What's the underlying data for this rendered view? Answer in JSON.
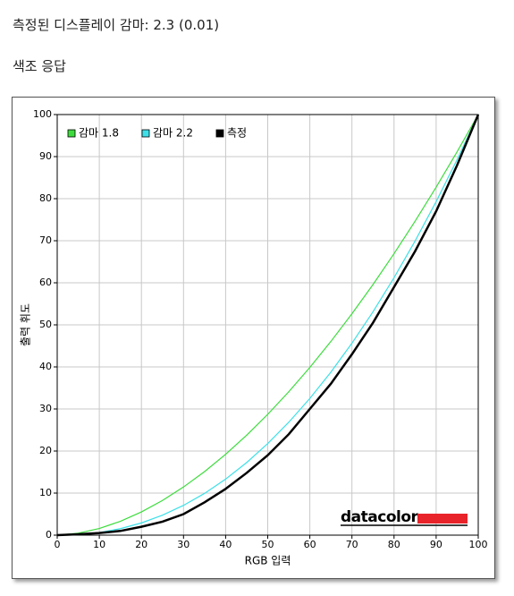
{
  "header": {
    "title": "측정된 디스플레이 감마: 2.3 (0.01)",
    "subtitle": "색조 응답"
  },
  "chart_data": {
    "type": "line",
    "xlabel": "RGB 입력",
    "ylabel": "출력 휘도",
    "logo": "datacolor",
    "x": [
      0,
      5,
      10,
      15,
      20,
      25,
      30,
      35,
      40,
      45,
      50,
      55,
      60,
      65,
      70,
      75,
      80,
      85,
      90,
      95,
      100
    ],
    "series": [
      {
        "name": "감마 1.8",
        "color": "#3ddc3d",
        "values": [
          0,
          0.46,
          1.58,
          3.29,
          5.52,
          8.25,
          11.45,
          15.11,
          19.22,
          23.76,
          28.72,
          34.09,
          39.87,
          46.05,
          52.63,
          59.58,
          66.92,
          74.64,
          82.72,
          91.18,
          100
        ]
      },
      {
        "name": "감마 2.2",
        "color": "#3de0e8",
        "values": [
          0,
          0.14,
          0.63,
          1.54,
          2.9,
          4.74,
          7.08,
          9.93,
          13.32,
          17.26,
          21.76,
          26.84,
          32.5,
          38.76,
          45.63,
          53.1,
          61.21,
          69.94,
          79.3,
          89.33,
          100
        ]
      },
      {
        "name": "측정",
        "color": "#000000",
        "values": [
          0,
          0.2,
          0.5,
          1,
          2,
          3.2,
          5,
          7.8,
          11,
          14.8,
          19,
          24,
          30,
          36,
          43,
          50.5,
          59,
          67.5,
          77,
          88,
          100
        ]
      }
    ],
    "xlim": [
      0,
      100
    ],
    "ylim": [
      0,
      100
    ],
    "xticks": [
      0,
      10,
      20,
      30,
      40,
      50,
      60,
      70,
      80,
      90,
      100
    ],
    "yticks": [
      0,
      10,
      20,
      30,
      40,
      50,
      60,
      70,
      80,
      90,
      100
    ],
    "grid": true,
    "legend": "upper left"
  }
}
